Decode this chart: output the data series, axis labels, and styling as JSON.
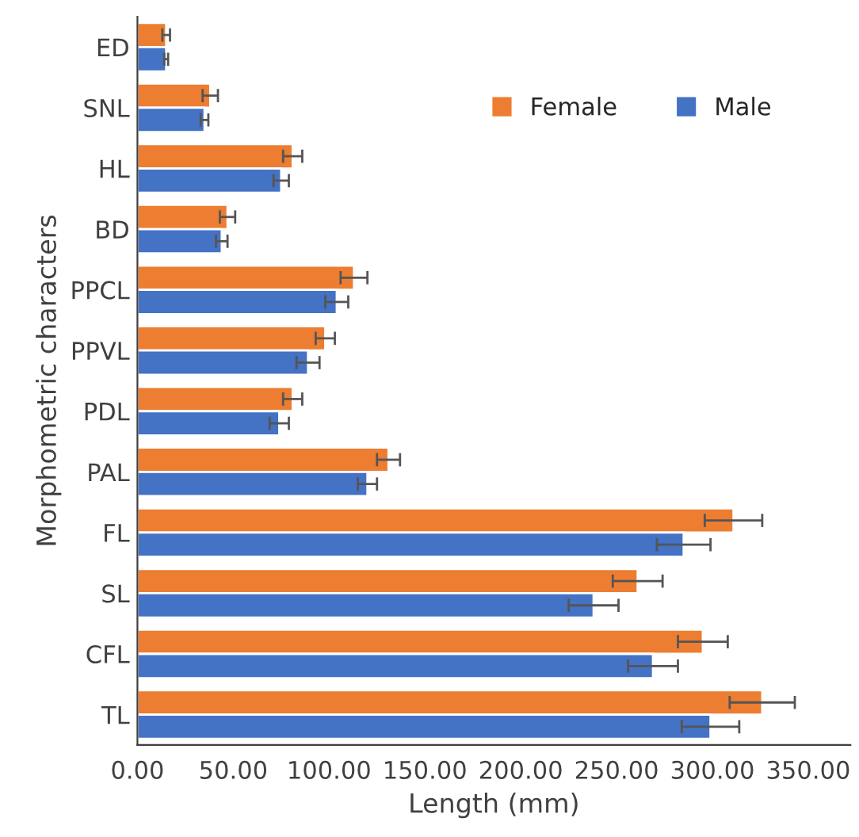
{
  "chart_data": {
    "type": "bar",
    "orientation": "horizontal",
    "xlabel": "Length (mm)",
    "ylabel": "Morphometric characters",
    "categories": [
      "ED",
      "SNL",
      "HL",
      "BD",
      "PPCL",
      "PPVL",
      "PDL",
      "PAL",
      "FL",
      "SL",
      "CFL",
      "TL"
    ],
    "series": [
      {
        "name": "Female",
        "color": "#ed7d31",
        "values": [
          15,
          38,
          81,
          47,
          113,
          98,
          81,
          131,
          311,
          261,
          295,
          326
        ],
        "errors": [
          2,
          4,
          5,
          4,
          7,
          5,
          5,
          6,
          15,
          13,
          13,
          17
        ]
      },
      {
        "name": "Male",
        "color": "#4472c4",
        "values": [
          15,
          35,
          75,
          44,
          104,
          89,
          74,
          120,
          285,
          238,
          269,
          299
        ],
        "errors": [
          1,
          2,
          4,
          3,
          6,
          6,
          5,
          5,
          14,
          13,
          13,
          15
        ]
      }
    ],
    "xlim": [
      0,
      372
    ],
    "xticks": [
      {
        "value": 0,
        "label": "0.00"
      },
      {
        "value": 50,
        "label": "50.00"
      },
      {
        "value": 100,
        "label": "100.00"
      },
      {
        "value": 150,
        "label": "150.00"
      },
      {
        "value": 200,
        "label": "200.00"
      },
      {
        "value": 250,
        "label": "250.00"
      },
      {
        "value": 300,
        "label": "300.00"
      },
      {
        "value": 350,
        "label": "350.00"
      }
    ],
    "grid": false,
    "legend": "top right"
  }
}
